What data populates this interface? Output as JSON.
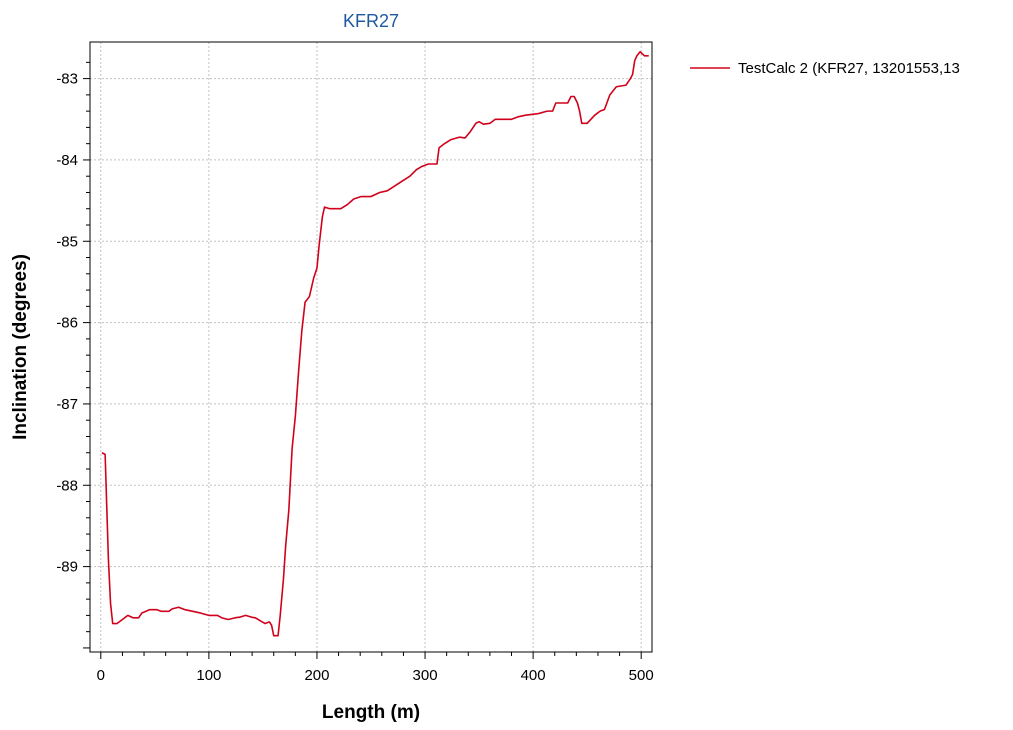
{
  "chart_data": {
    "type": "line",
    "title": "KFR27",
    "xlabel": "Length (m)",
    "ylabel": "Inclination (degrees)",
    "xlim": [
      -10,
      510
    ],
    "ylim": [
      -90.05,
      -82.55
    ],
    "x_ticks": [
      0,
      100,
      200,
      300,
      400,
      500
    ],
    "y_ticks": [
      -83,
      -84,
      -85,
      -86,
      -87,
      -88,
      -89
    ],
    "grid": true,
    "legend_position": "right",
    "colors": {
      "title": "#1f5aa0",
      "series": "#d0021b",
      "grid": "#c0c0c0",
      "axis": "#000000"
    },
    "series": [
      {
        "name": "TestCalc 2 (KFR27, 13201553,13",
        "points": [
          [
            1,
            -87.6
          ],
          [
            4,
            -87.62
          ],
          [
            7,
            -88.9
          ],
          [
            9,
            -89.45
          ],
          [
            11,
            -89.7
          ],
          [
            15,
            -89.7
          ],
          [
            20,
            -89.65
          ],
          [
            25,
            -89.6
          ],
          [
            30,
            -89.63
          ],
          [
            35,
            -89.63
          ],
          [
            38,
            -89.57
          ],
          [
            45,
            -89.53
          ],
          [
            52,
            -89.53
          ],
          [
            56,
            -89.55
          ],
          [
            63,
            -89.55
          ],
          [
            66,
            -89.52
          ],
          [
            72,
            -89.5
          ],
          [
            78,
            -89.53
          ],
          [
            85,
            -89.55
          ],
          [
            92,
            -89.57
          ],
          [
            100,
            -89.6
          ],
          [
            108,
            -89.6
          ],
          [
            112,
            -89.63
          ],
          [
            118,
            -89.65
          ],
          [
            124,
            -89.63
          ],
          [
            129,
            -89.62
          ],
          [
            134,
            -89.6
          ],
          [
            139,
            -89.62
          ],
          [
            143,
            -89.63
          ],
          [
            148,
            -89.67
          ],
          [
            152,
            -89.7
          ],
          [
            156,
            -89.68
          ],
          [
            158,
            -89.72
          ],
          [
            160,
            -89.85
          ],
          [
            164,
            -89.85
          ],
          [
            166,
            -89.6
          ],
          [
            169,
            -89.15
          ],
          [
            171,
            -88.75
          ],
          [
            174,
            -88.3
          ],
          [
            177,
            -87.55
          ],
          [
            180,
            -87.15
          ],
          [
            183,
            -86.6
          ],
          [
            186,
            -86.1
          ],
          [
            189,
            -85.75
          ],
          [
            193,
            -85.68
          ],
          [
            197,
            -85.45
          ],
          [
            200,
            -85.33
          ],
          [
            202,
            -85.05
          ],
          [
            205,
            -84.7
          ],
          [
            207,
            -84.58
          ],
          [
            212,
            -84.6
          ],
          [
            222,
            -84.6
          ],
          [
            228,
            -84.55
          ],
          [
            234,
            -84.48
          ],
          [
            241,
            -84.45
          ],
          [
            250,
            -84.45
          ],
          [
            258,
            -84.4
          ],
          [
            265,
            -84.38
          ],
          [
            272,
            -84.32
          ],
          [
            280,
            -84.25
          ],
          [
            286,
            -84.2
          ],
          [
            292,
            -84.12
          ],
          [
            297,
            -84.08
          ],
          [
            303,
            -84.05
          ],
          [
            311,
            -84.05
          ],
          [
            313,
            -83.85
          ],
          [
            318,
            -83.8
          ],
          [
            324,
            -83.75
          ],
          [
            332,
            -83.72
          ],
          [
            337,
            -83.73
          ],
          [
            342,
            -83.65
          ],
          [
            347,
            -83.55
          ],
          [
            350,
            -83.53
          ],
          [
            354,
            -83.56
          ],
          [
            360,
            -83.55
          ],
          [
            365,
            -83.5
          ],
          [
            380,
            -83.5
          ],
          [
            386,
            -83.47
          ],
          [
            393,
            -83.45
          ],
          [
            405,
            -83.43
          ],
          [
            413,
            -83.4
          ],
          [
            418,
            -83.4
          ],
          [
            421,
            -83.3
          ],
          [
            432,
            -83.3
          ],
          [
            435,
            -83.22
          ],
          [
            438,
            -83.22
          ],
          [
            441,
            -83.3
          ],
          [
            443,
            -83.4
          ],
          [
            445,
            -83.55
          ],
          [
            450,
            -83.55
          ],
          [
            457,
            -83.45
          ],
          [
            462,
            -83.4
          ],
          [
            466,
            -83.38
          ],
          [
            471,
            -83.2
          ],
          [
            477,
            -83.1
          ],
          [
            486,
            -83.08
          ],
          [
            490,
            -83.0
          ],
          [
            492,
            -82.95
          ],
          [
            494,
            -82.78
          ],
          [
            496,
            -82.72
          ],
          [
            499,
            -82.67
          ],
          [
            503,
            -82.72
          ],
          [
            507,
            -82.72
          ]
        ]
      }
    ]
  }
}
